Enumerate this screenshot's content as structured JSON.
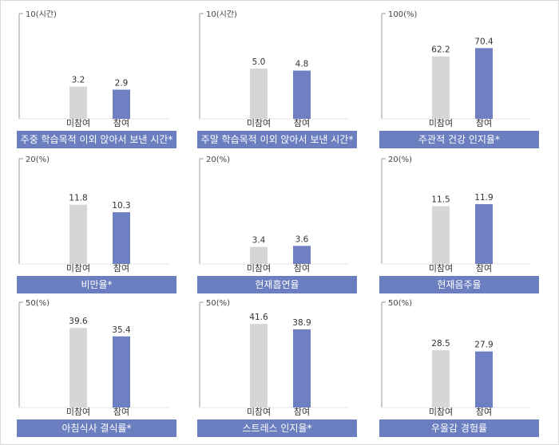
{
  "colors": {
    "non_participant_bar": "#d6d6d6",
    "participant_bar": "#6f80c2",
    "caption_bg": "#6b7fc0",
    "axis": "#999999"
  },
  "chart_data": [
    {
      "type": "bar",
      "axis_top_label": "10(시간)",
      "ylim": [
        0,
        10
      ],
      "categories": [
        "미참여",
        "참여"
      ],
      "values": [
        3.2,
        2.9
      ],
      "value_labels": [
        "3.2",
        "2.9"
      ],
      "caption": "주중 학습목적 이외 앉아서 보낸 시간*"
    },
    {
      "type": "bar",
      "axis_top_label": "10(시간)",
      "ylim": [
        0,
        10
      ],
      "categories": [
        "미참여",
        "참여"
      ],
      "values": [
        5.0,
        4.8
      ],
      "value_labels": [
        "5.0",
        "4.8"
      ],
      "caption": "주말 학습목적 이외 앉아서 보낸 시간*"
    },
    {
      "type": "bar",
      "axis_top_label": "100(%)",
      "ylim": [
        0,
        100
      ],
      "categories": [
        "미참여",
        "참여"
      ],
      "values": [
        62.2,
        70.4
      ],
      "value_labels": [
        "62.2",
        "70.4"
      ],
      "caption": "주관적 건강 인지율*"
    },
    {
      "type": "bar",
      "axis_top_label": "20(%)",
      "ylim": [
        0,
        20
      ],
      "categories": [
        "미참여",
        "참여"
      ],
      "values": [
        11.8,
        10.3
      ],
      "value_labels": [
        "11.8",
        "10.3"
      ],
      "caption": "비만율*"
    },
    {
      "type": "bar",
      "axis_top_label": "20(%)",
      "ylim": [
        0,
        20
      ],
      "categories": [
        "미참여",
        "참여"
      ],
      "values": [
        3.4,
        3.6
      ],
      "value_labels": [
        "3.4",
        "3.6"
      ],
      "caption": "현재흡연율"
    },
    {
      "type": "bar",
      "axis_top_label": "20(%)",
      "ylim": [
        0,
        20
      ],
      "categories": [
        "미참여",
        "참여"
      ],
      "values": [
        11.5,
        11.9
      ],
      "value_labels": [
        "11.5",
        "11.9"
      ],
      "caption": "현재음주율"
    },
    {
      "type": "bar",
      "axis_top_label": "50(%)",
      "ylim": [
        0,
        50
      ],
      "categories": [
        "미참여",
        "참여"
      ],
      "values": [
        39.6,
        35.4
      ],
      "value_labels": [
        "39.6",
        "35.4"
      ],
      "caption": "아침식사 결식률*"
    },
    {
      "type": "bar",
      "axis_top_label": "50(%)",
      "ylim": [
        0,
        50
      ],
      "categories": [
        "미참여",
        "참여"
      ],
      "values": [
        41.6,
        38.9
      ],
      "value_labels": [
        "41.6",
        "38.9"
      ],
      "caption": "스트레스 인지율*"
    },
    {
      "type": "bar",
      "axis_top_label": "50(%)",
      "ylim": [
        0,
        50
      ],
      "categories": [
        "미참여",
        "참여"
      ],
      "values": [
        28.5,
        27.9
      ],
      "value_labels": [
        "28.5",
        "27.9"
      ],
      "caption": "우울감 경험률"
    }
  ]
}
